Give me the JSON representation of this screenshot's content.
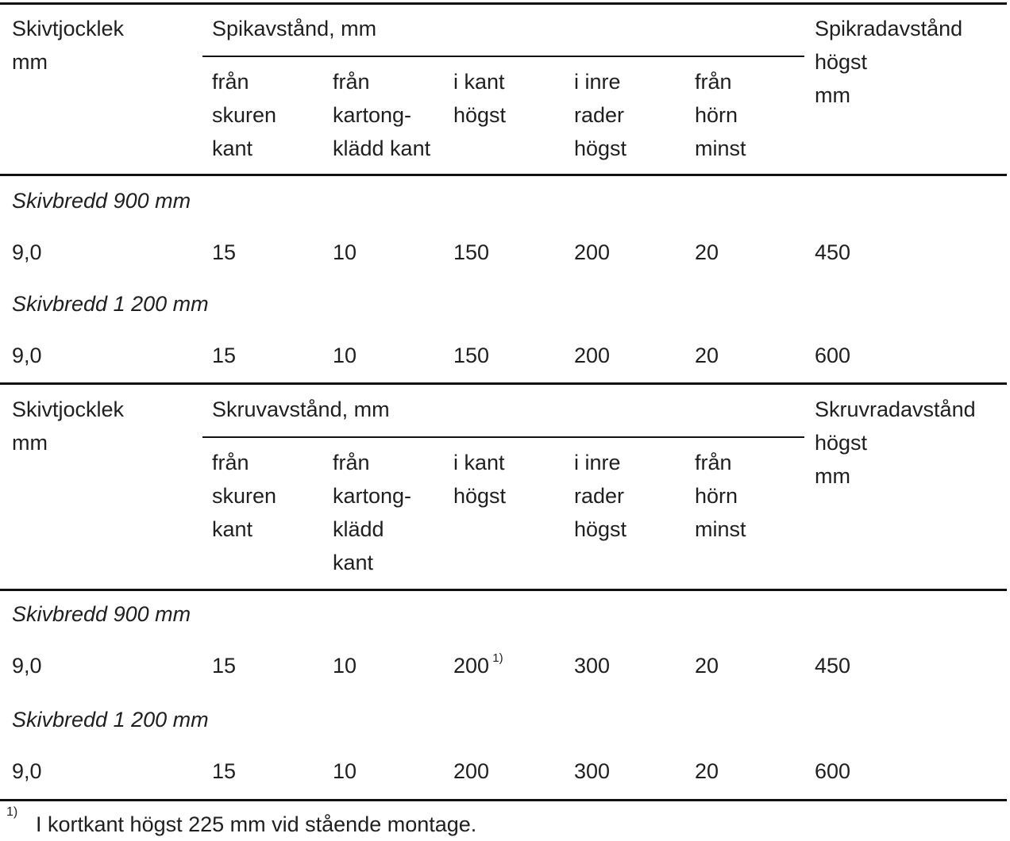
{
  "sections": [
    {
      "head_col1": [
        "Skivtjocklek",
        "mm"
      ],
      "group_title": "Spikavstånd, mm",
      "subheads": [
        [
          "från",
          "skuren",
          "kant"
        ],
        [
          "från",
          "kartong-",
          "klädd kant"
        ],
        [
          "i kant",
          "högst"
        ],
        [
          "i inre",
          "rader",
          "högst"
        ],
        [
          "från",
          "hörn",
          "minst"
        ]
      ],
      "head_last": [
        "Spikradavstånd",
        "högst",
        "mm"
      ],
      "groups": [
        {
          "label": "Skivbredd 900 mm",
          "row": [
            "9,0",
            "15",
            "10",
            "150",
            "200",
            "20",
            "450"
          ],
          "footnote_mark": ""
        },
        {
          "label": "Skivbredd 1 200 mm",
          "row": [
            "9,0",
            "15",
            "10",
            "150",
            "200",
            "20",
            "600"
          ],
          "footnote_mark": ""
        }
      ]
    },
    {
      "head_col1": [
        "Skivtjocklek",
        "mm"
      ],
      "group_title": "Skruvavstånd, mm",
      "subheads": [
        [
          "från",
          "skuren",
          "kant"
        ],
        [
          "från",
          "kartong-",
          "klädd",
          "kant"
        ],
        [
          "i kant",
          "högst"
        ],
        [
          "i inre",
          "rader",
          "högst"
        ],
        [
          "från",
          "hörn",
          "minst"
        ]
      ],
      "head_last": [
        "Skruvradavstånd",
        "högst",
        "mm"
      ],
      "groups": [
        {
          "label": "Skivbredd 900 mm",
          "row": [
            "9,0",
            "15",
            "10",
            "200",
            "300",
            "20",
            "450"
          ],
          "footnote_mark": "1)"
        },
        {
          "label": "Skivbredd 1 200 mm",
          "row": [
            "9,0",
            "15",
            "10",
            "200",
            "300",
            "20",
            "600"
          ],
          "footnote_mark": ""
        }
      ]
    }
  ],
  "footnote": {
    "mark": "1)",
    "text": "I kortkant högst 225 mm vid stående montage."
  }
}
